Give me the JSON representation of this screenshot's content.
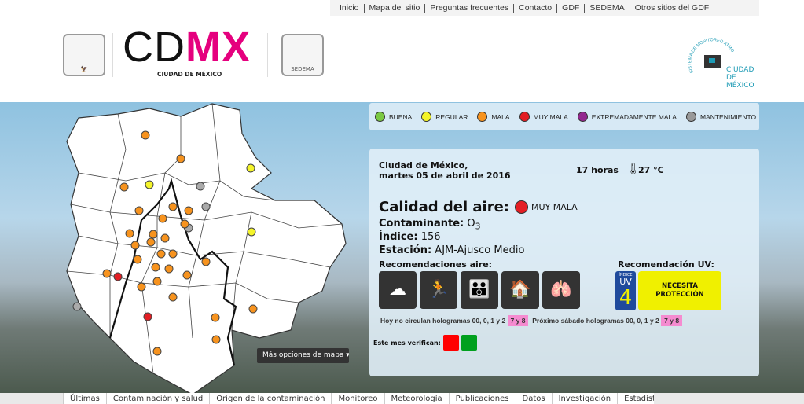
{
  "topnav": [
    "Inicio",
    "Mapa del sitio",
    "Preguntas frecuentes",
    "Contacto",
    "GDF",
    "SEDEMA",
    "Otros sitios del GDF"
  ],
  "header": {
    "brand_plain": "CD",
    "brand_accent": "MX",
    "brand_sub": "CIUDAD DE MÉXICO",
    "sedema": "SEDEMA",
    "simat_text": "SISTEMA DE MONITOREO ATMOSFÉRICO",
    "simat_city": "CIUDAD DE MÉXICO"
  },
  "legend": [
    {
      "label": "BUENA",
      "color": "#7ac943"
    },
    {
      "label": "REGULAR",
      "color": "#f4f42a"
    },
    {
      "label": "MALA",
      "color": "#f7931e"
    },
    {
      "label": "MUY MALA",
      "color": "#e31e24"
    },
    {
      "label": "EXTREMADAMENTE MALA",
      "color": "#93278f"
    },
    {
      "label": "MANTENIMIENTO",
      "color": "#999999"
    }
  ],
  "panel": {
    "city": "Ciudad de México,",
    "date": "martes 05 de abril de 2016",
    "hour": "17 horas",
    "temp": "27 °C",
    "quality_label": "Calidad del aire:",
    "quality_value": "MUY MALA",
    "quality_color": "#e31e24",
    "pollutant_label": "Contaminante:",
    "pollutant_value": "O",
    "pollutant_sub": "3",
    "index_label": "Índice:",
    "index_value": "156",
    "station_label": "Estación:",
    "station_value": "AJM-Ajusco Medio",
    "rec_air_title": "Recomendaciones aire:",
    "rec_uv_title": "Recomendación UV:",
    "uv_index_label": "ÍNDICE",
    "uv_label": "UV",
    "uv_value": "4",
    "uv_text": "NECESITA PROTECCIÓN",
    "hoy_text": "Hoy no circulan hologramas 00, 0, 1 y 2",
    "hoy_plates": "7 y 8",
    "sabado_text": "Próximo sábado hologramas 00, 0, 1 y 2",
    "sabado_plates": "7 y 8",
    "verifican_label": "Este mes verifican:",
    "verifican_colors": [
      "#ff0000",
      "#00a01e"
    ]
  },
  "map": {
    "options_button": "Más opciones de mapa",
    "stations": [
      "mala",
      "mala",
      "regular",
      "mala",
      "regular",
      "mantenimiento",
      "mala",
      "mantenimiento",
      "mala",
      "mantenimiento",
      "mala",
      "mala",
      "regular",
      "mala",
      "mala",
      "mala",
      "mala",
      "mala",
      "mala",
      "mala",
      "mala",
      "mala",
      "mala",
      "muy-mala",
      "mala",
      "mala",
      "mala",
      "mala",
      "mala",
      "mala",
      "mantenimiento",
      "mala",
      "muy-mala",
      "mala",
      "mala",
      "mala",
      "mala"
    ]
  },
  "bottomnav": [
    "Últimas",
    "Contaminación y salud",
    "Origen de la contaminación",
    "Monitoreo",
    "Meteorología",
    "Publicaciones",
    "Datos",
    "Investigación",
    "Estadísticas"
  ]
}
